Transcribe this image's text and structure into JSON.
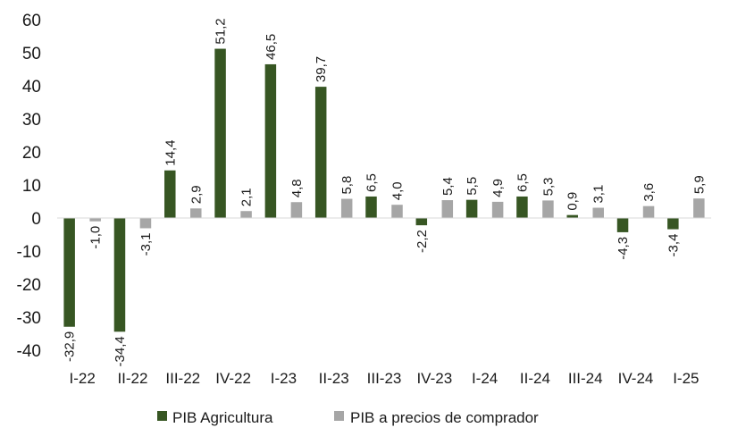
{
  "chart_data": {
    "type": "bar",
    "categories": [
      "I-22",
      "II-22",
      "III-22",
      "IV-22",
      "I-23",
      "II-23",
      "III-23",
      "IV-23",
      "I-24",
      "II-24",
      "III-24",
      "IV-24",
      "I-25"
    ],
    "series": [
      {
        "name": "PIB Agricultura",
        "color": "#375623",
        "values": [
          -32.9,
          -34.4,
          14.4,
          51.2,
          46.5,
          39.7,
          6.5,
          -2.2,
          5.5,
          6.5,
          0.9,
          -4.3,
          -3.4
        ],
        "labels": [
          "-32,9",
          "-34,4",
          "14,4",
          "51,2",
          "46,5",
          "39,7",
          "6,5",
          "-2,2",
          "5,5",
          "6,5",
          "0,9",
          "-4,3",
          "-3,4"
        ]
      },
      {
        "name": "PIB a precios de comprador",
        "color": "#a6a6a6",
        "values": [
          -1.0,
          -3.1,
          2.9,
          2.1,
          4.8,
          5.8,
          4.0,
          5.4,
          4.9,
          5.3,
          3.1,
          3.6,
          5.9
        ],
        "labels": [
          "-1,0",
          "-3,1",
          "2,9",
          "2,1",
          "4,8",
          "5,8",
          "4,0",
          "5,4",
          "4,9",
          "5,3",
          "3,1",
          "3,6",
          "5,9"
        ]
      }
    ],
    "yticks": [
      "60",
      "50",
      "40",
      "30",
      "20",
      "10",
      "0",
      "-10",
      "-20",
      "-30",
      "-40"
    ],
    "ylim": [
      -40,
      60
    ],
    "grid": false,
    "legend_position": "bottom"
  }
}
